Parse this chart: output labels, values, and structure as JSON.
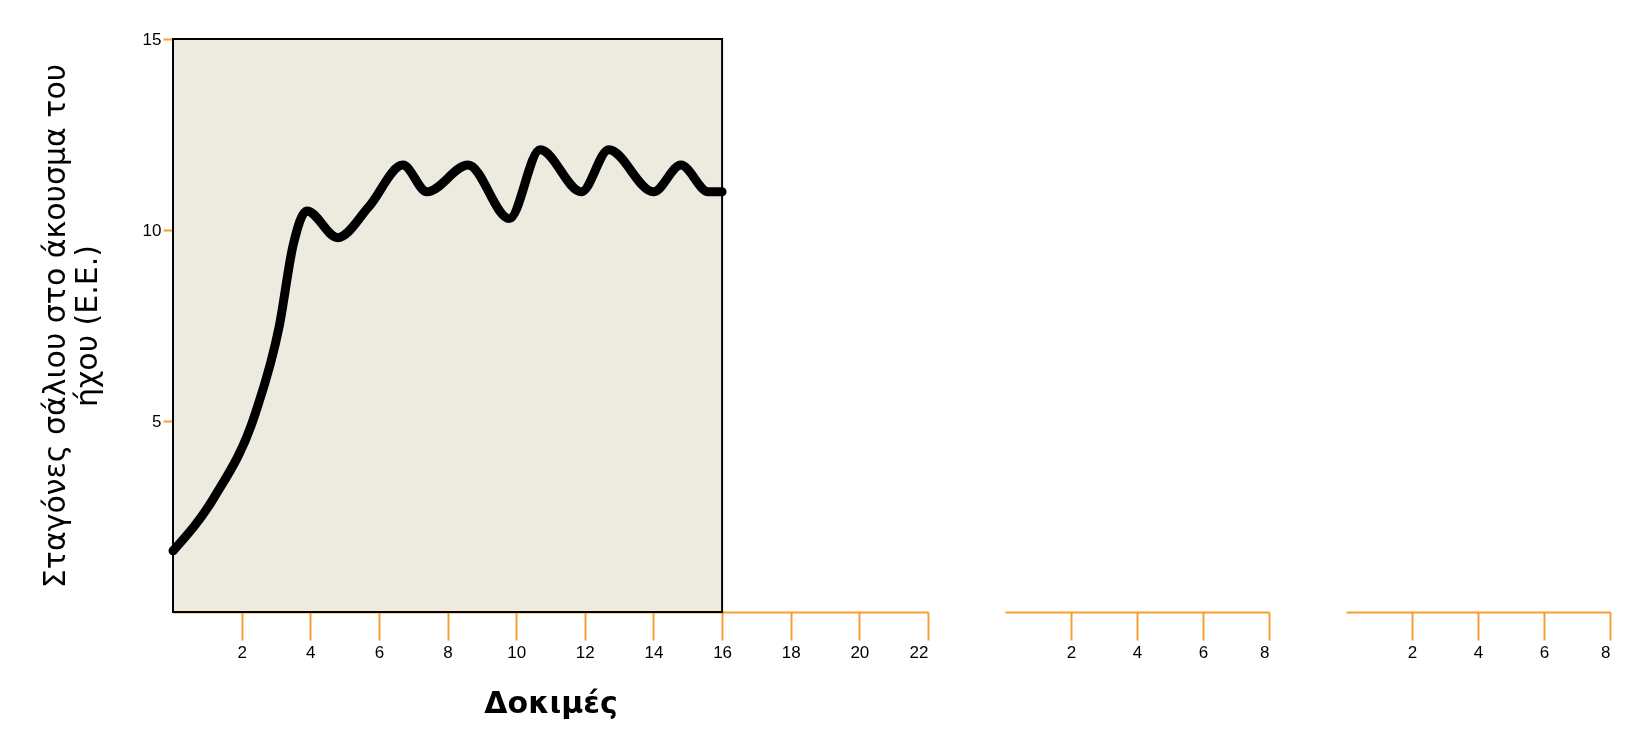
{
  "chart_data": [
    {
      "type": "line",
      "xlabel": "Δοκιμές",
      "ylabel": "Σταγόνες σάλιου στο άκουσμα του ήχου (Ε.Ε.)",
      "xlim": [
        0,
        22
      ],
      "xticks": [
        2,
        4,
        6,
        8,
        10,
        12,
        14,
        16,
        18,
        20,
        22
      ],
      "ylim": [
        0,
        15
      ],
      "yticks": [
        5,
        10,
        15
      ],
      "line_style": "solid",
      "marker": "none",
      "bands": [
        {
          "axis": "x",
          "from": 0,
          "to": 16,
          "color": "#edeae0"
        }
      ],
      "series": [
        {
          "color": "#000000",
          "x": [
            0,
            1.2,
            2.4,
            3.1,
            3.5,
            3.9,
            4.8,
            5.7,
            6.7,
            7.4,
            8.6,
            9.8,
            10.7,
            11.9,
            12.7,
            14,
            14.8,
            15.6,
            16
          ],
          "values": [
            1.6,
            3,
            5.2,
            7.5,
            9.6,
            10.5,
            9.8,
            10.6,
            11.7,
            11,
            11.7,
            10.3,
            12.1,
            11,
            12.1,
            11,
            11.7,
            11,
            11
          ]
        }
      ]
    },
    {
      "type": "line",
      "xlim": [
        0,
        8
      ],
      "xticks": [
        2,
        4,
        6,
        8
      ],
      "ylim": [
        0,
        15
      ],
      "tick_labels": "x"
    },
    {
      "type": "line",
      "xlim": [
        0,
        8
      ],
      "xticks": [
        2,
        4,
        6,
        8
      ],
      "ylim": [
        0,
        15
      ],
      "tick_labels": "x"
    }
  ]
}
